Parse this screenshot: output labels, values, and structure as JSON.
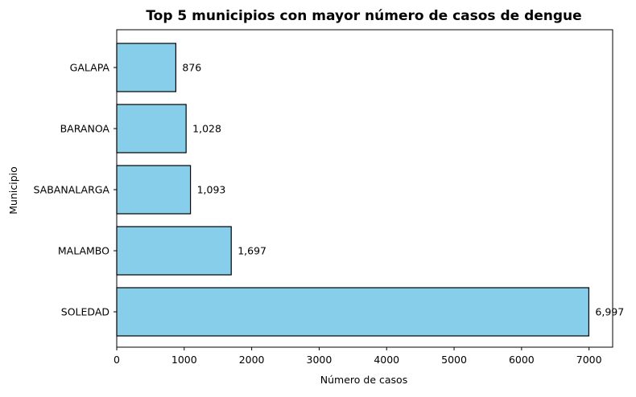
{
  "chart_data": {
    "type": "bar",
    "orientation": "horizontal",
    "title": "Top 5 municipios con mayor número de casos de dengue",
    "xlabel": "Número de casos",
    "ylabel": "Municipio",
    "categories": [
      "SOLEDAD",
      "MALAMBO",
      "SABANALARGA",
      "BARANOA",
      "GALAPA"
    ],
    "values": [
      6997,
      1697,
      1093,
      1028,
      876
    ],
    "value_labels": [
      "6,997",
      "1,697",
      "1,093",
      "1,028",
      "876"
    ],
    "xlim": [
      0,
      7350
    ],
    "xticks": [
      0,
      1000,
      2000,
      3000,
      4000,
      5000,
      6000,
      7000
    ],
    "xtick_labels": [
      "0",
      "1000",
      "2000",
      "3000",
      "4000",
      "5000",
      "6000",
      "7000"
    ],
    "grid": false,
    "bar_color": "#87CEEB",
    "edge_color": "#000000"
  }
}
